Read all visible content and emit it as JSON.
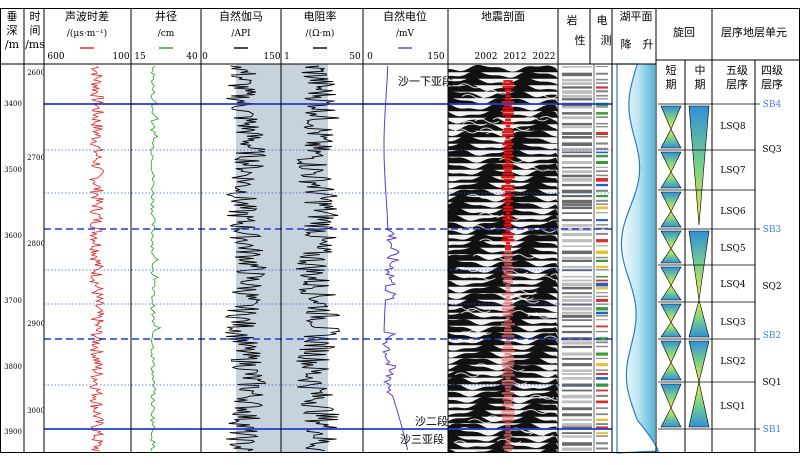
{
  "headers": {
    "depth": {
      "line1": "垂",
      "line2": "深",
      "line3": "/m"
    },
    "time": {
      "line1": "时",
      "line2": "间",
      "line3": "/ms"
    },
    "ac": {
      "title": "声波时差",
      "unit": "/(μs·m⁻¹)",
      "min": "600",
      "max": "100"
    },
    "cal": {
      "title": "井径",
      "unit": "/cm",
      "min": "15",
      "max": "40"
    },
    "gr": {
      "title": "自然伽马",
      "unit": "/API",
      "min": "0",
      "max": "150"
    },
    "rt": {
      "title": "电阻率",
      "unit": "/(Ω·m)",
      "min": "1",
      "max": "50"
    },
    "sp": {
      "title": "自然电位",
      "unit": "/mV",
      "min": "0",
      "max": "150"
    },
    "seismic": {
      "title": "地震剖面",
      "years": [
        "2002",
        "2012",
        "2022"
      ]
    },
    "lith": {
      "title1": "岩",
      "title2": "性",
      "title3": "电",
      "title4": "测"
    },
    "lake": {
      "title": "湖平面",
      "fall": "降",
      "rise": "升"
    },
    "cycle": {
      "title": "旋回",
      "short1": "短",
      "short2": "期",
      "mid1": "中",
      "mid2": "期"
    },
    "units": {
      "title": "层序地层单元",
      "fifth1": "五级",
      "fifth2": "层序",
      "fourth1": "四级",
      "fourth2": "层序"
    }
  },
  "depth_ticks": [
    "3400",
    "3500",
    "3600",
    "3700",
    "3800",
    "3900"
  ],
  "time_ticks": [
    "2600",
    "2700",
    "2800",
    "2900",
    "3000"
  ],
  "formation_labels": {
    "sha1_lower": "沙一下亚段",
    "sha2": "沙二段",
    "sha3_upper": "沙三亚段"
  },
  "sb_labels": [
    "SB4",
    "SB3",
    "SB2",
    "SB1"
  ],
  "lsq_labels": [
    "LSQ8",
    "LSQ7",
    "LSQ6",
    "LSQ5",
    "LSQ4",
    "LSQ3",
    "LSQ2",
    "LSQ1"
  ],
  "sq_labels": [
    "SQ3",
    "SQ2",
    "SQ1"
  ],
  "colors": {
    "sb_line": "#1f3fd0",
    "sb_label": "#4a7bd8",
    "ac_curve": "#e02020",
    "cal_curve": "#22a022",
    "sp_curve": "#5a3cc8",
    "gr_fill": "#c6d2dc",
    "seismic_red": "#e01010"
  }
}
